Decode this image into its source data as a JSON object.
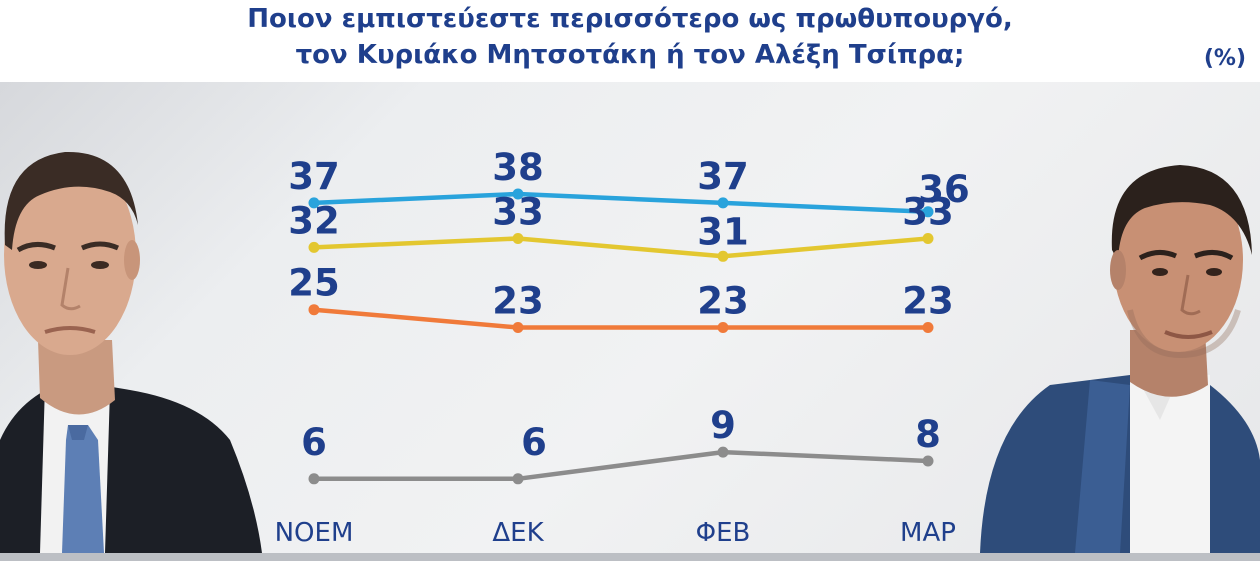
{
  "header": {
    "title_line1": "Ποιον εμπιστεύεστε περισσότερο ως πρωθυπουργό,",
    "title_line2": "τον Κυριάκο Μητσοτάκη ή τον Αλέξη Τσίπρα;",
    "unit": "(%)"
  },
  "chart_data": {
    "type": "line",
    "categories": [
      "ΝΟΕΜ",
      "ΔΕΚ",
      "ΦΕΒ",
      "ΜΑΡ"
    ],
    "series": [
      {
        "values": [
          37,
          38,
          37,
          36
        ],
        "color": "#29a3dc"
      },
      {
        "values": [
          32,
          33,
          31,
          33
        ],
        "color": "#e3c730"
      },
      {
        "values": [
          25,
          23,
          23,
          23
        ],
        "color": "#f07a3a"
      },
      {
        "values": [
          6,
          6,
          9,
          8
        ],
        "color": "#8c8c8c"
      }
    ],
    "label_color": "#1f3f8c",
    "axis_label_color": "#1f3f8c",
    "ylim": [
      0,
      40
    ],
    "grid": false,
    "legend": "none"
  },
  "images": {
    "left_person": "man-portrait-left",
    "right_person": "man-portrait-right"
  }
}
